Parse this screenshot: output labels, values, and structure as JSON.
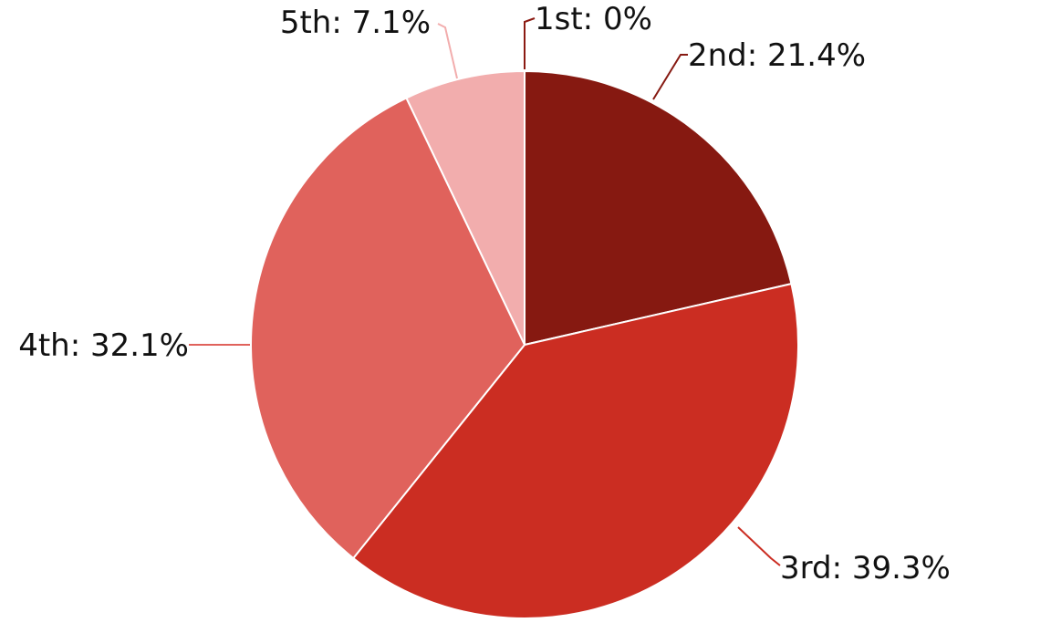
{
  "chart_data": {
    "type": "pie",
    "title": "",
    "slices": [
      {
        "label": "1st",
        "value": 0,
        "display": "1st: 0%",
        "color": "#8b1a12"
      },
      {
        "label": "2nd",
        "value": 21.4,
        "display": "2nd: 21.4%",
        "color": "#861911"
      },
      {
        "label": "3rd",
        "value": 39.3,
        "display": "3rd: 39.3%",
        "color": "#cb2d22"
      },
      {
        "label": "4th",
        "value": 32.1,
        "display": "4th: 32.1%",
        "color": "#e0625c"
      },
      {
        "label": "5th",
        "value": 7.1,
        "display": "5th: 7.1%",
        "color": "#f2adad"
      }
    ],
    "start_angle": "12 o'clock",
    "direction": "clockwise",
    "legend": "none",
    "label_style": "outside with leader lines"
  }
}
